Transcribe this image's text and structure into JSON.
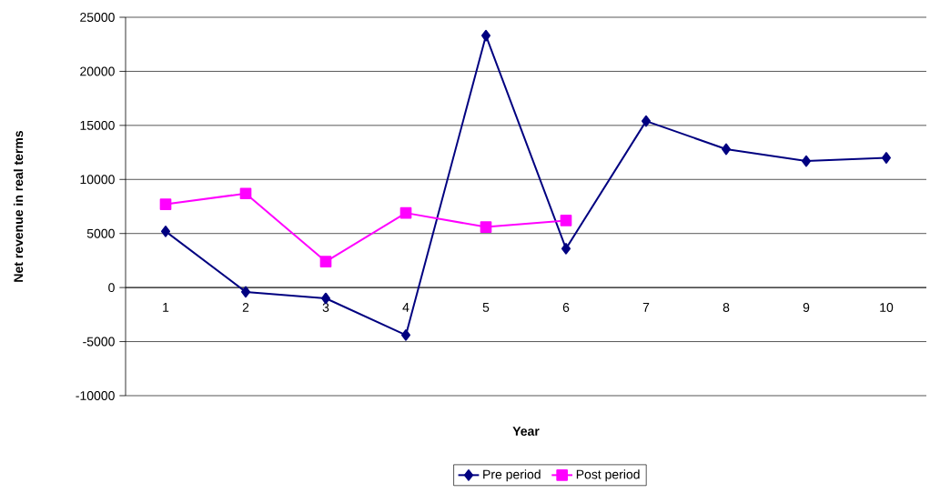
{
  "chart_data": {
    "type": "line",
    "xlabel": "Year",
    "ylabel": "Net revenue in real terms",
    "categories": [
      "1",
      "2",
      "3",
      "4",
      "5",
      "6",
      "7",
      "8",
      "9",
      "10"
    ],
    "series": [
      {
        "name": "Pre period",
        "color": "#000080",
        "marker": "diamond",
        "values": [
          5200,
          -400,
          -1000,
          -4400,
          23300,
          3600,
          15400,
          12800,
          11700,
          12000
        ]
      },
      {
        "name": "Post period",
        "color": "#ff00ff",
        "marker": "square",
        "values": [
          7700,
          8700,
          2400,
          6900,
          5600,
          6200,
          null,
          null,
          null,
          null
        ]
      }
    ],
    "ylim": [
      -10000,
      25000
    ],
    "yticks": [
      -10000,
      -5000,
      0,
      5000,
      10000,
      15000,
      20000,
      25000
    ],
    "grid": "y",
    "legend": "bottom"
  }
}
